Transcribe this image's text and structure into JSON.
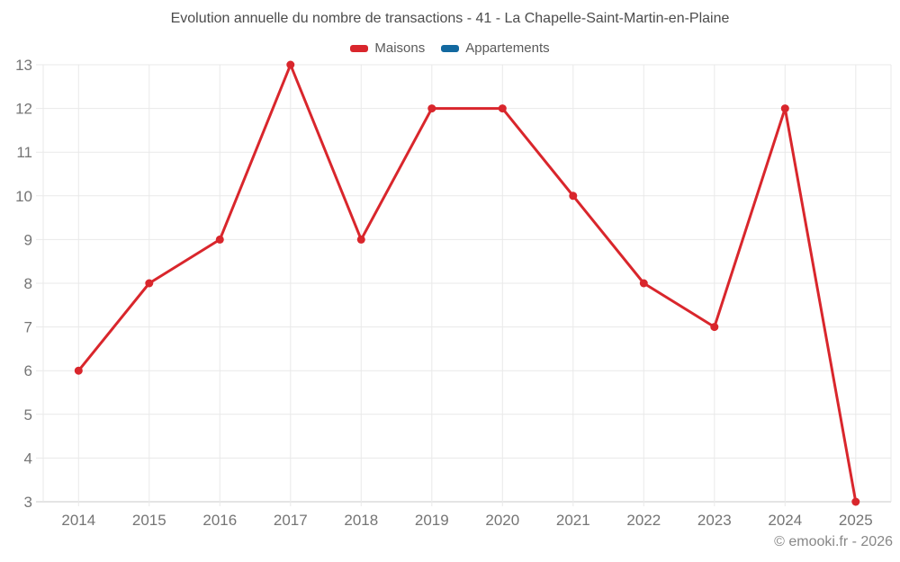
{
  "title": "Evolution annuelle du nombre de transactions - 41 - La Chapelle-Saint-Martin-en-Plaine",
  "legend": [
    {
      "label": "Maisons",
      "color": "#d9262c"
    },
    {
      "label": "Appartements",
      "color": "#1369a0"
    }
  ],
  "watermark": "© emooki.fr - 2026",
  "colors": {
    "maisons": "#d9262c",
    "appartements": "#1369a0",
    "grid": "#e9e9e9",
    "axis": "#c9c9c9",
    "tick_text": "#757575",
    "title_text": "#4c4c4c",
    "watermark_text": "#878787",
    "background": "#ffffff"
  },
  "chart_data": {
    "type": "line",
    "title": "Evolution annuelle du nombre de transactions - 41 - La Chapelle-Saint-Martin-en-Plaine",
    "categories": [
      "2014",
      "2015",
      "2016",
      "2017",
      "2018",
      "2019",
      "2020",
      "2021",
      "2022",
      "2023",
      "2024",
      "2025"
    ],
    "series": [
      {
        "name": "Maisons",
        "color": "#d9262c",
        "values": [
          6,
          8,
          9,
          13,
          9,
          12,
          12,
          10,
          8,
          7,
          12,
          3
        ]
      },
      {
        "name": "Appartements",
        "color": "#1369a0",
        "values": []
      }
    ],
    "xlabel": "",
    "ylabel": "",
    "ylim": [
      3,
      13
    ],
    "y_ticks": [
      3,
      4,
      5,
      6,
      7,
      8,
      9,
      10,
      11,
      12,
      13
    ],
    "grid": true,
    "legend_position": "top"
  }
}
